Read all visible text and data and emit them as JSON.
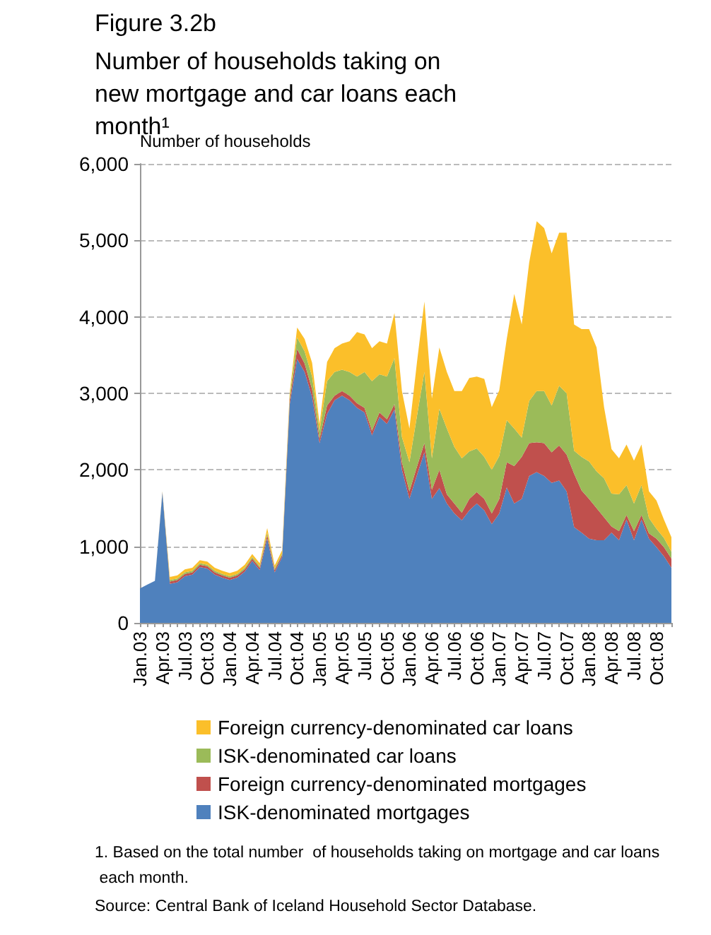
{
  "chart_data": {
    "type": "area",
    "stacked": true,
    "subtitle": "Figure 3.2b",
    "title": "Number of households taking on new mortgage and car loans each month¹",
    "ylabel": "Number of households",
    "categories": [
      "Jan.03",
      null,
      null,
      "Apr.03",
      null,
      null,
      "Jul.03",
      null,
      null,
      "Oct.03",
      null,
      null,
      "Jan.04",
      null,
      null,
      "Apr.04",
      null,
      null,
      "Jul.04",
      null,
      null,
      "Oct.04",
      null,
      null,
      "Jan.05",
      null,
      null,
      "Apr.05",
      null,
      null,
      "Jul.05",
      null,
      null,
      "Oct.05",
      null,
      null,
      "Jan.06",
      null,
      null,
      "Apr.06",
      null,
      null,
      "Jul.06",
      null,
      null,
      "Oct.06",
      null,
      null,
      "Jan.07",
      null,
      null,
      "Apr.07",
      null,
      null,
      "Jul.07",
      null,
      null,
      "Oct.07",
      null,
      null,
      "Jan.08",
      null,
      null,
      "Apr.08",
      null,
      null,
      "Jul.08",
      null,
      null,
      "Oct.08",
      null,
      null
    ],
    "series": [
      {
        "name": "ISK-denominated mortgages",
        "color": "#4f81bd",
        "values": [
          450,
          500,
          550,
          1700,
          510,
          530,
          610,
          630,
          730,
          710,
          630,
          590,
          560,
          590,
          670,
          810,
          690,
          1100,
          660,
          860,
          2850,
          3450,
          3280,
          2950,
          2350,
          2730,
          2910,
          2970,
          2910,
          2810,
          2750,
          2450,
          2690,
          2600,
          2790,
          2000,
          1620,
          1930,
          2230,
          1620,
          1760,
          1560,
          1430,
          1340,
          1470,
          1560,
          1470,
          1290,
          1430,
          1770,
          1560,
          1620,
          1920,
          1970,
          1920,
          1830,
          1860,
          1720,
          1250,
          1180,
          1100,
          1080,
          1080,
          1180,
          1080,
          1350,
          1080,
          1350,
          1100,
          990,
          870,
          720
        ]
      },
      {
        "name": "Foreign currency-denominated mortgages",
        "color": "#c0504d",
        "values": [
          0,
          0,
          0,
          10,
          30,
          30,
          30,
          30,
          30,
          30,
          30,
          30,
          30,
          30,
          30,
          30,
          30,
          50,
          30,
          30,
          60,
          130,
          110,
          100,
          60,
          110,
          60,
          60,
          60,
          60,
          60,
          60,
          60,
          60,
          70,
          100,
          100,
          110,
          120,
          120,
          240,
          120,
          130,
          100,
          150,
          150,
          150,
          140,
          190,
          330,
          490,
          550,
          430,
          390,
          430,
          400,
          460,
          480,
          700,
          550,
          520,
          420,
          300,
          80,
          120,
          60,
          120,
          60,
          70,
          110,
          120,
          120
        ]
      },
      {
        "name": "ISK-denominated car loans",
        "color": "#9bbb59",
        "values": [
          0,
          0,
          0,
          10,
          20,
          20,
          20,
          20,
          20,
          20,
          20,
          20,
          20,
          20,
          20,
          20,
          20,
          30,
          20,
          20,
          40,
          150,
          160,
          170,
          100,
          320,
          310,
          280,
          310,
          350,
          470,
          650,
          500,
          560,
          600,
          330,
          380,
          660,
          930,
          410,
          800,
          860,
          740,
          710,
          620,
          570,
          550,
          570,
          560,
          550,
          490,
          250,
          550,
          670,
          680,
          610,
          780,
          800,
          300,
          440,
          490,
          480,
          510,
          430,
          480,
          390,
          360,
          390,
          200,
          130,
          120,
          90
        ]
      },
      {
        "name": "Foreign currency-denominated car loans",
        "color": "#fbbf2a",
        "values": [
          0,
          0,
          0,
          0,
          40,
          40,
          40,
          40,
          40,
          40,
          40,
          40,
          40,
          40,
          40,
          40,
          40,
          60,
          40,
          40,
          50,
          130,
          160,
          180,
          90,
          250,
          310,
          340,
          400,
          580,
          490,
          430,
          430,
          430,
          590,
          600,
          440,
          700,
          920,
          780,
          800,
          740,
          730,
          880,
          960,
          940,
          1020,
          820,
          860,
          1060,
          1760,
          1480,
          1810,
          2220,
          2130,
          1990,
          2000,
          2100,
          1650,
          1670,
          1730,
          1620,
          930,
          580,
          470,
          530,
          560,
          530,
          350,
          370,
          240,
          190
        ]
      }
    ],
    "ylim": [
      0,
      6000
    ],
    "yticks": [
      0,
      {
        "value": 1000,
        "label": "1,000"
      },
      {
        "value": 2000,
        "label": "2,000"
      },
      {
        "value": 3000,
        "label": "3,000"
      },
      {
        "value": 4000,
        "label": "4,000"
      },
      {
        "value": 5000,
        "label": "5,000"
      },
      {
        "value": 6000,
        "label": "6,000"
      }
    ],
    "grid": "y",
    "legend": "bottom",
    "annotations": [
      "1. Based on the total number  of households taking on mortgage and car loans each month.",
      "Source: Central Bank of Iceland Household Sector Database."
    ]
  }
}
